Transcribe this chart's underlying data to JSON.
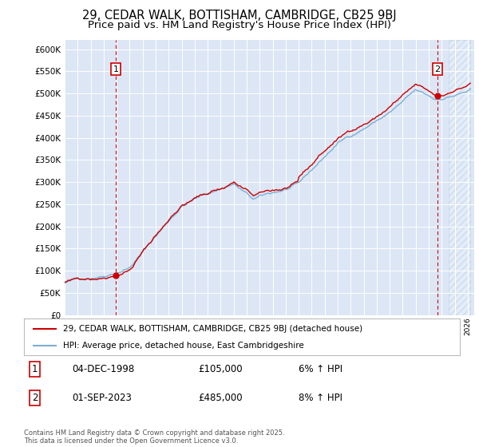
{
  "title_line1": "29, CEDAR WALK, BOTTISHAM, CAMBRIDGE, CB25 9BJ",
  "title_line2": "Price paid vs. HM Land Registry's House Price Index (HPI)",
  "ytick_values": [
    0,
    50000,
    100000,
    150000,
    200000,
    250000,
    300000,
    350000,
    400000,
    450000,
    500000,
    550000,
    600000
  ],
  "ylim": [
    0,
    620000
  ],
  "xlim_start": 1995.0,
  "xlim_end": 2026.5,
  "hpi_color": "#7bafd4",
  "price_color": "#cc0000",
  "marker1_x": 1998.92,
  "marker1_label": "1",
  "marker2_x": 2023.67,
  "marker2_label": "2",
  "vline_color": "#cc0000",
  "plot_bg_color": "#dce6f5",
  "legend_line1": "29, CEDAR WALK, BOTTISHAM, CAMBRIDGE, CB25 9BJ (detached house)",
  "legend_line2": "HPI: Average price, detached house, East Cambridgeshire",
  "annotation1_date": "04-DEC-1998",
  "annotation1_price": "£105,000",
  "annotation1_hpi": "6% ↑ HPI",
  "annotation2_date": "01-SEP-2023",
  "annotation2_price": "£485,000",
  "annotation2_hpi": "8% ↑ HPI",
  "footer": "Contains HM Land Registry data © Crown copyright and database right 2025.\nThis data is licensed under the Open Government Licence v3.0.",
  "title_fontsize": 10.5,
  "subtitle_fontsize": 9.5
}
